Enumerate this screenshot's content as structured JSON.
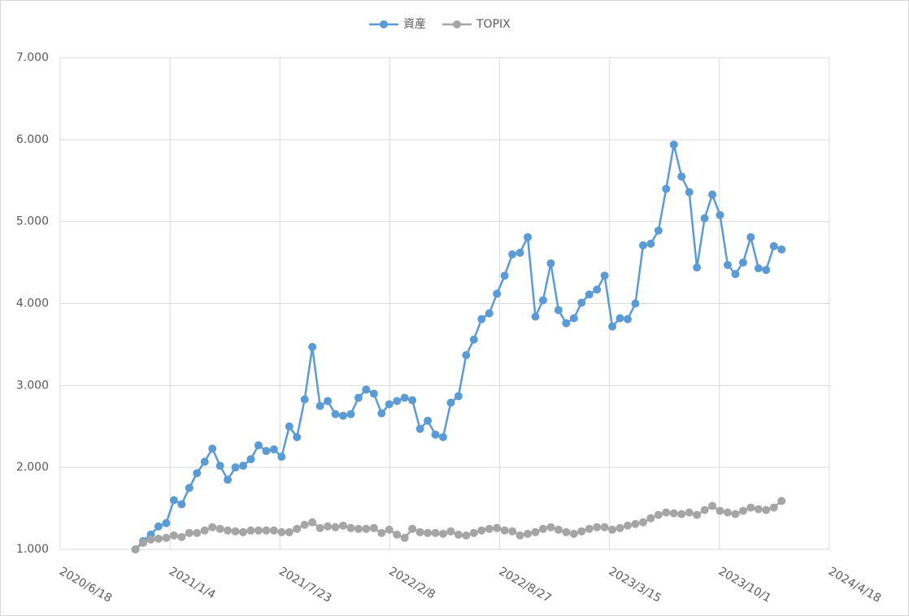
{
  "chart_data": {
    "type": "line",
    "grid": true,
    "legend": "top",
    "xlim": [
      "2020/6/18",
      "2024/4/18"
    ],
    "xticks": [
      "2020/6/18",
      "2021/1/4",
      "2021/7/23",
      "2022/2/8",
      "2022/8/27",
      "2023/3/15",
      "2023/10/1",
      "2024/4/18"
    ],
    "ylim": [
      1,
      7
    ],
    "yticks": [
      {
        "value": 1,
        "label": "1.000"
      },
      {
        "value": 2,
        "label": "2.000"
      },
      {
        "value": 3,
        "label": "3.000"
      },
      {
        "value": 4,
        "label": "4.000"
      },
      {
        "value": 5,
        "label": "5.000"
      },
      {
        "value": 6,
        "label": "6.000"
      },
      {
        "value": 7,
        "label": "7.000"
      }
    ],
    "x": [
      "2020/11/2",
      "2020/11/16",
      "2020/11/30",
      "2020/12/14",
      "2020/12/28",
      "2021/1/11",
      "2021/1/25",
      "2021/2/8",
      "2021/2/22",
      "2021/3/8",
      "2021/3/22",
      "2021/4/5",
      "2021/4/19",
      "2021/5/3",
      "2021/5/17",
      "2021/5/31",
      "2021/6/14",
      "2021/6/28",
      "2021/7/12",
      "2021/7/26",
      "2021/8/9",
      "2021/8/23",
      "2021/9/6",
      "2021/9/20",
      "2021/10/4",
      "2021/10/18",
      "2021/11/1",
      "2021/11/15",
      "2021/11/29",
      "2021/12/13",
      "2021/12/27",
      "2022/1/10",
      "2022/1/24",
      "2022/2/7",
      "2022/2/21",
      "2022/3/7",
      "2022/3/21",
      "2022/4/4",
      "2022/4/18",
      "2022/5/2",
      "2022/5/16",
      "2022/5/30",
      "2022/6/13",
      "2022/6/27",
      "2022/7/11",
      "2022/7/25",
      "2022/8/8",
      "2022/8/22",
      "2022/9/5",
      "2022/9/19",
      "2022/10/3",
      "2022/10/17",
      "2022/10/31",
      "2022/11/14",
      "2022/11/28",
      "2022/12/12",
      "2022/12/26",
      "2023/1/9",
      "2023/1/23",
      "2023/2/6",
      "2023/2/20",
      "2023/3/6",
      "2023/3/20",
      "2023/4/3",
      "2023/4/17",
      "2023/5/1",
      "2023/5/15",
      "2023/5/29",
      "2023/6/12",
      "2023/6/26",
      "2023/7/10",
      "2023/7/24",
      "2023/8/7",
      "2023/8/21",
      "2023/9/4",
      "2023/9/18",
      "2023/10/2",
      "2023/10/16",
      "2023/10/30",
      "2023/11/13",
      "2023/11/27",
      "2023/12/11",
      "2023/12/25",
      "2024/1/8",
      "2024/1/22"
    ],
    "series": [
      {
        "name": "資産",
        "color": "#5b9bd5",
        "values": [
          1.0,
          1.1,
          1.18,
          1.28,
          1.32,
          1.6,
          1.55,
          1.75,
          1.93,
          2.07,
          2.23,
          2.02,
          1.85,
          2.0,
          2.02,
          2.1,
          2.27,
          2.2,
          2.22,
          2.13,
          2.5,
          2.37,
          2.83,
          3.47,
          2.75,
          2.81,
          2.65,
          2.63,
          2.65,
          2.85,
          2.95,
          2.9,
          2.66,
          2.77,
          2.81,
          2.85,
          2.82,
          2.47,
          2.57,
          2.4,
          2.37,
          2.79,
          2.87,
          3.37,
          3.56,
          3.81,
          3.88,
          4.12,
          4.34,
          4.6,
          4.62,
          4.81,
          3.84,
          4.04,
          4.49,
          3.92,
          3.76,
          3.82,
          4.01,
          4.11,
          4.17,
          4.34,
          3.72,
          3.82,
          3.81,
          4.0,
          4.71,
          4.73,
          4.89,
          5.4,
          5.94,
          5.55,
          5.36,
          4.44,
          5.04,
          5.33,
          5.08,
          4.47,
          4.36,
          4.5,
          4.81,
          4.43,
          4.41,
          4.7,
          4.66
        ]
      },
      {
        "name": "TOPIX",
        "color": "#a5a5a5",
        "values": [
          1.0,
          1.08,
          1.12,
          1.13,
          1.14,
          1.17,
          1.15,
          1.2,
          1.2,
          1.23,
          1.27,
          1.25,
          1.23,
          1.22,
          1.21,
          1.23,
          1.23,
          1.23,
          1.23,
          1.21,
          1.21,
          1.25,
          1.3,
          1.33,
          1.26,
          1.28,
          1.27,
          1.29,
          1.26,
          1.25,
          1.25,
          1.26,
          1.2,
          1.24,
          1.18,
          1.14,
          1.25,
          1.21,
          1.2,
          1.2,
          1.19,
          1.22,
          1.18,
          1.17,
          1.2,
          1.23,
          1.25,
          1.26,
          1.23,
          1.22,
          1.17,
          1.19,
          1.21,
          1.25,
          1.27,
          1.24,
          1.21,
          1.19,
          1.22,
          1.25,
          1.27,
          1.27,
          1.24,
          1.26,
          1.29,
          1.31,
          1.33,
          1.38,
          1.42,
          1.45,
          1.44,
          1.43,
          1.45,
          1.42,
          1.48,
          1.53,
          1.47,
          1.45,
          1.43,
          1.47,
          1.51,
          1.49,
          1.48,
          1.51,
          1.59
        ]
      }
    ]
  }
}
